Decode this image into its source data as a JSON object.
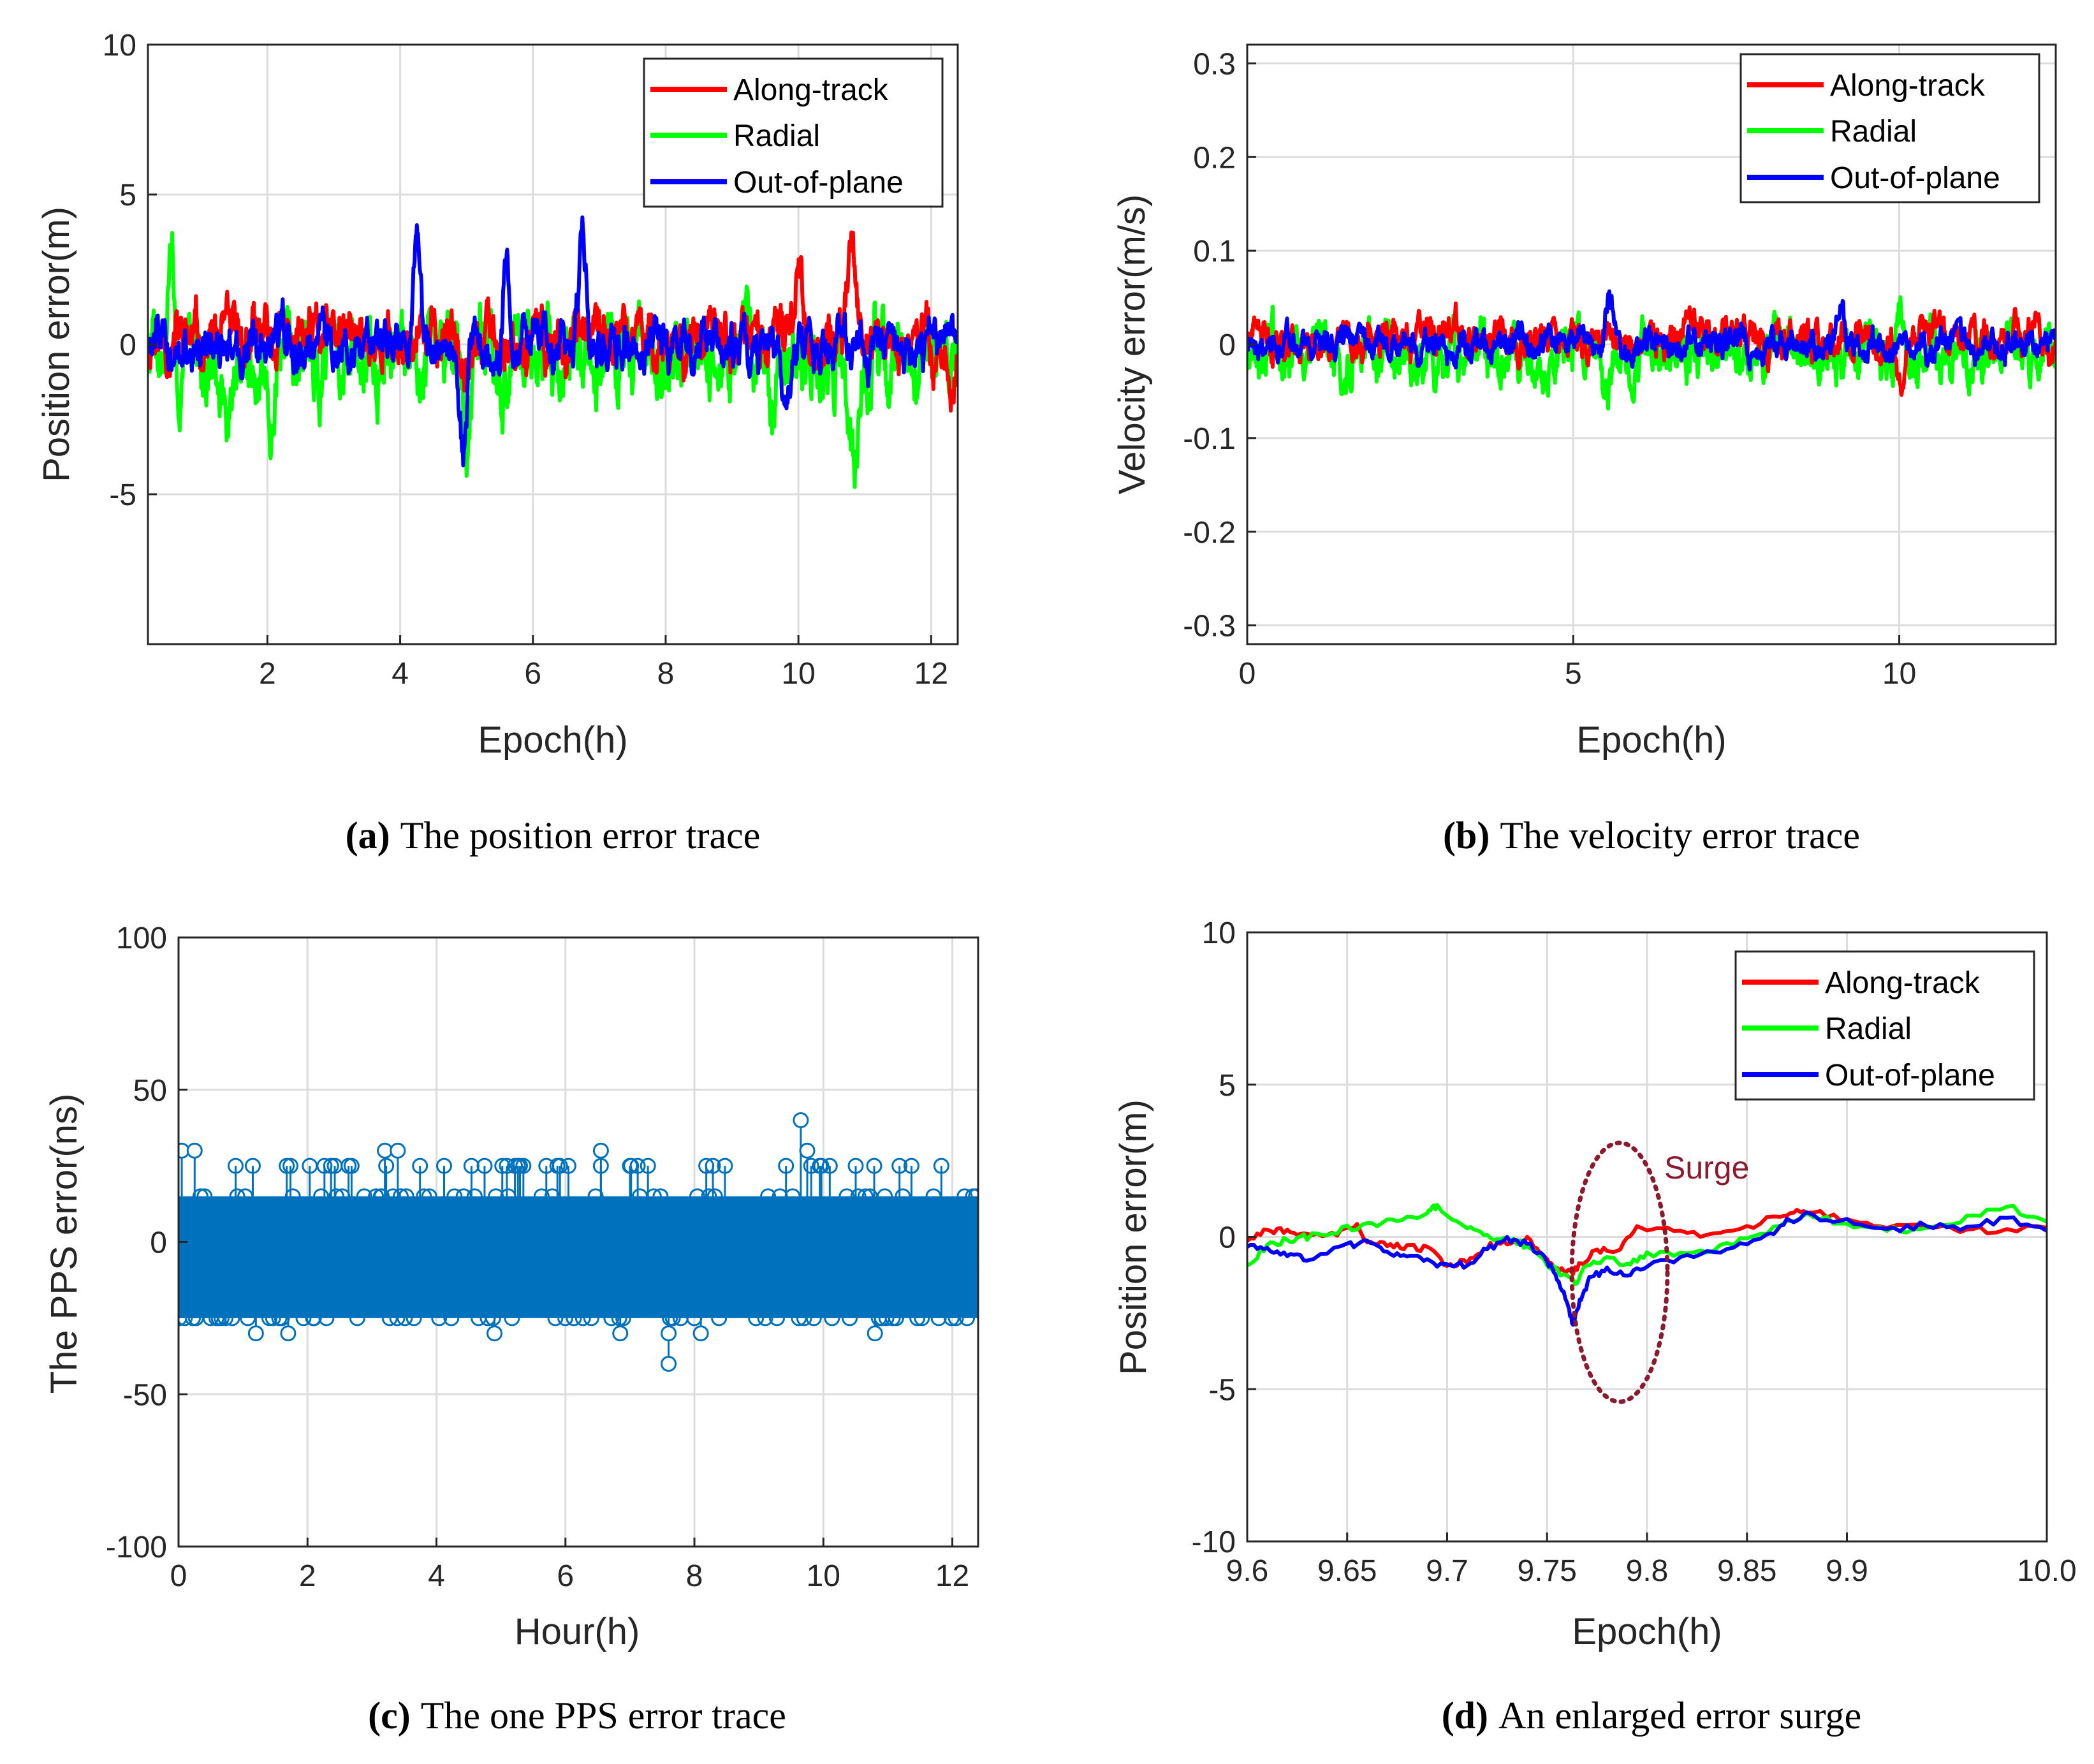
{
  "colors": {
    "along": "#ff0000",
    "radial": "#00ff00",
    "out": "#0000ff",
    "pps": "#0072bd",
    "surge": "#8b1a2e",
    "grid": "#dcdcdc",
    "axis": "#262626"
  },
  "chart_data": [
    {
      "id": "a",
      "type": "line",
      "ylabel": "Position error(m)",
      "xlabel": "Epoch(h)",
      "xlim": [
        0.2,
        12.4
      ],
      "ylim": [
        -10,
        10
      ],
      "xticks": [
        2,
        4,
        6,
        8,
        10,
        12
      ],
      "yticks": [
        -5,
        0,
        5,
        10
      ],
      "legend_position": "top-right",
      "caption_key": "(a)",
      "caption": "The position error trace",
      "series": [
        {
          "name": "Along-track",
          "amp": 0.7,
          "base": 0.15,
          "spikes": [
            [
              10.0,
              3.0
            ],
            [
              10.8,
              4.0
            ],
            [
              12.3,
              -2.0
            ]
          ]
        },
        {
          "name": "Radial",
          "amp": 1.0,
          "base": -0.4,
          "spikes": [
            [
              0.55,
              2.9
            ],
            [
              1.4,
              -2.4
            ],
            [
              2.05,
              -2.4
            ],
            [
              5.0,
              -2.9
            ],
            [
              9.6,
              -2.8
            ],
            [
              10.85,
              -3.6
            ]
          ]
        },
        {
          "name": "Out-of-plane",
          "amp": 0.6,
          "base": 0.0,
          "spikes": [
            [
              4.25,
              2.5
            ],
            [
              4.95,
              -3.6
            ],
            [
              5.6,
              3.3
            ],
            [
              6.75,
              3.4
            ],
            [
              9.8,
              -2.9
            ]
          ]
        }
      ]
    },
    {
      "id": "b",
      "type": "line",
      "ylabel": "Velocity error(m/s)",
      "xlabel": "Epoch(h)",
      "xlim": [
        0,
        12.4
      ],
      "ylim": [
        -0.32,
        0.32
      ],
      "xticks": [
        0,
        5,
        10
      ],
      "ytick_labels": [
        "-0.3",
        "-0.2",
        "-0.1",
        "0",
        "0.1",
        "0.2",
        "0.3"
      ],
      "legend_position": "top-right",
      "caption_key": "(b)",
      "caption": "The velocity error trace",
      "series": [
        {
          "name": "Along-track",
          "amp": 0.015,
          "base": 0.005,
          "spikes": [
            [
              10.0,
              -0.05
            ],
            [
              12.3,
              -0.03
            ]
          ]
        },
        {
          "name": "Radial",
          "amp": 0.022,
          "base": -0.008,
          "spikes": [
            [
              5.5,
              -0.065
            ],
            [
              10.0,
              0.06
            ]
          ]
        },
        {
          "name": "Out-of-plane",
          "amp": 0.012,
          "base": 0.0,
          "spikes": [
            [
              5.55,
              0.06
            ],
            [
              9.1,
              0.05
            ]
          ]
        }
      ]
    },
    {
      "id": "c",
      "type": "stem",
      "ylabel": "The PPS error(ns)",
      "xlabel": "Hour(h)",
      "xlim": [
        0,
        12.4
      ],
      "ylim": [
        -100,
        100
      ],
      "xticks": [
        0,
        2,
        4,
        6,
        8,
        10,
        12
      ],
      "yticks": [
        -100,
        -50,
        0,
        50,
        100
      ],
      "levels": [
        -25,
        -15,
        -5,
        5,
        15,
        25
      ],
      "core_range": [
        -25,
        15
      ],
      "outliers": [
        [
          0.05,
          30
        ],
        [
          0.25,
          30
        ],
        [
          3.2,
          30
        ],
        [
          3.4,
          30
        ],
        [
          6.55,
          30
        ],
        [
          9.65,
          40
        ],
        [
          9.75,
          30
        ],
        [
          1.2,
          -30
        ],
        [
          1.7,
          -30
        ],
        [
          4.9,
          -30
        ],
        [
          6.85,
          -30
        ],
        [
          7.6,
          -40
        ],
        [
          7.6,
          -30
        ],
        [
          8.1,
          -30
        ],
        [
          10.8,
          -30
        ]
      ],
      "caption_key": "(c)",
      "caption": "The one PPS error trace"
    },
    {
      "id": "d",
      "type": "line",
      "ylabel": "Position error(m)",
      "xlabel": "Epoch(h)",
      "xlim": [
        9.6,
        10.0
      ],
      "ylim": [
        -10,
        10
      ],
      "xtick_labels": [
        "9.6",
        "9.65",
        "9.7",
        "9.75",
        "9.8",
        "9.85",
        "9.9",
        "10.0"
      ],
      "yticks": [
        -10,
        -5,
        0,
        5,
        10
      ],
      "legend_position": "top-right",
      "annotation": "Surge",
      "caption_key": "(d)",
      "caption": "An enlarged error surge",
      "series": [
        {
          "name": "Along-track",
          "points": [
            [
              9.6,
              -0.1
            ],
            [
              9.61,
              0.2
            ],
            [
              9.62,
              0.2
            ],
            [
              9.63,
              0.0
            ],
            [
              9.645,
              0.1
            ],
            [
              9.655,
              0.4
            ],
            [
              9.66,
              -0.2
            ],
            [
              9.67,
              -0.3
            ],
            [
              9.68,
              -0.3
            ],
            [
              9.69,
              -0.4
            ],
            [
              9.7,
              -0.9
            ],
            [
              9.71,
              -0.8
            ],
            [
              9.72,
              -0.3
            ],
            [
              9.73,
              -0.2
            ],
            [
              9.74,
              -0.1
            ],
            [
              9.75,
              -0.7
            ],
            [
              9.755,
              -1.0
            ],
            [
              9.762,
              -1.2
            ],
            [
              9.768,
              -0.8
            ],
            [
              9.775,
              -0.4
            ],
            [
              9.785,
              -0.5
            ],
            [
              9.795,
              0.3
            ],
            [
              9.81,
              0.2
            ],
            [
              9.83,
              0.0
            ],
            [
              9.85,
              0.3
            ],
            [
              9.87,
              0.8
            ],
            [
              9.88,
              0.9
            ],
            [
              9.9,
              0.5
            ],
            [
              9.92,
              0.4
            ],
            [
              9.95,
              0.3
            ],
            [
              9.97,
              0.2
            ],
            [
              10.0,
              0.3
            ]
          ]
        },
        {
          "name": "Radial",
          "points": [
            [
              9.6,
              -0.9
            ],
            [
              9.61,
              -0.3
            ],
            [
              9.62,
              -0.1
            ],
            [
              9.63,
              0.0
            ],
            [
              9.645,
              0.2
            ],
            [
              9.66,
              0.4
            ],
            [
              9.675,
              0.5
            ],
            [
              9.69,
              0.8
            ],
            [
              9.695,
              1.0
            ],
            [
              9.71,
              0.3
            ],
            [
              9.72,
              0.0
            ],
            [
              9.73,
              0.0
            ],
            [
              9.74,
              -0.3
            ],
            [
              9.75,
              -0.9
            ],
            [
              9.76,
              -1.3
            ],
            [
              9.765,
              -1.5
            ],
            [
              9.77,
              -0.9
            ],
            [
              9.78,
              -0.7
            ],
            [
              9.79,
              -0.9
            ],
            [
              9.8,
              -0.6
            ],
            [
              9.82,
              -0.5
            ],
            [
              9.84,
              -0.3
            ],
            [
              9.86,
              0.2
            ],
            [
              9.88,
              0.8
            ],
            [
              9.9,
              0.4
            ],
            [
              9.92,
              0.2
            ],
            [
              9.94,
              0.3
            ],
            [
              9.96,
              0.6
            ],
            [
              9.98,
              1.0
            ],
            [
              10.0,
              0.5
            ]
          ]
        },
        {
          "name": "Out-of-plane",
          "points": [
            [
              9.6,
              -0.3
            ],
            [
              9.61,
              -0.4
            ],
            [
              9.62,
              -0.6
            ],
            [
              9.63,
              -0.7
            ],
            [
              9.65,
              -0.3
            ],
            [
              9.66,
              -0.2
            ],
            [
              9.67,
              -0.5
            ],
            [
              9.68,
              -0.6
            ],
            [
              9.69,
              -0.8
            ],
            [
              9.7,
              -1.0
            ],
            [
              9.71,
              -0.9
            ],
            [
              9.72,
              -0.4
            ],
            [
              9.73,
              -0.1
            ],
            [
              9.74,
              -0.2
            ],
            [
              9.75,
              -0.8
            ],
            [
              9.755,
              -1.4
            ],
            [
              9.76,
              -2.1
            ],
            [
              9.763,
              -2.9
            ],
            [
              9.767,
              -2.0
            ],
            [
              9.772,
              -1.3
            ],
            [
              9.78,
              -1.1
            ],
            [
              9.79,
              -1.2
            ],
            [
              9.8,
              -0.9
            ],
            [
              9.82,
              -0.7
            ],
            [
              9.84,
              -0.4
            ],
            [
              9.86,
              0.0
            ],
            [
              9.87,
              0.5
            ],
            [
              9.88,
              0.7
            ],
            [
              9.9,
              0.5
            ],
            [
              9.92,
              0.2
            ],
            [
              9.94,
              0.4
            ],
            [
              9.96,
              0.3
            ],
            [
              9.98,
              0.6
            ],
            [
              10.0,
              0.2
            ]
          ]
        }
      ]
    }
  ]
}
